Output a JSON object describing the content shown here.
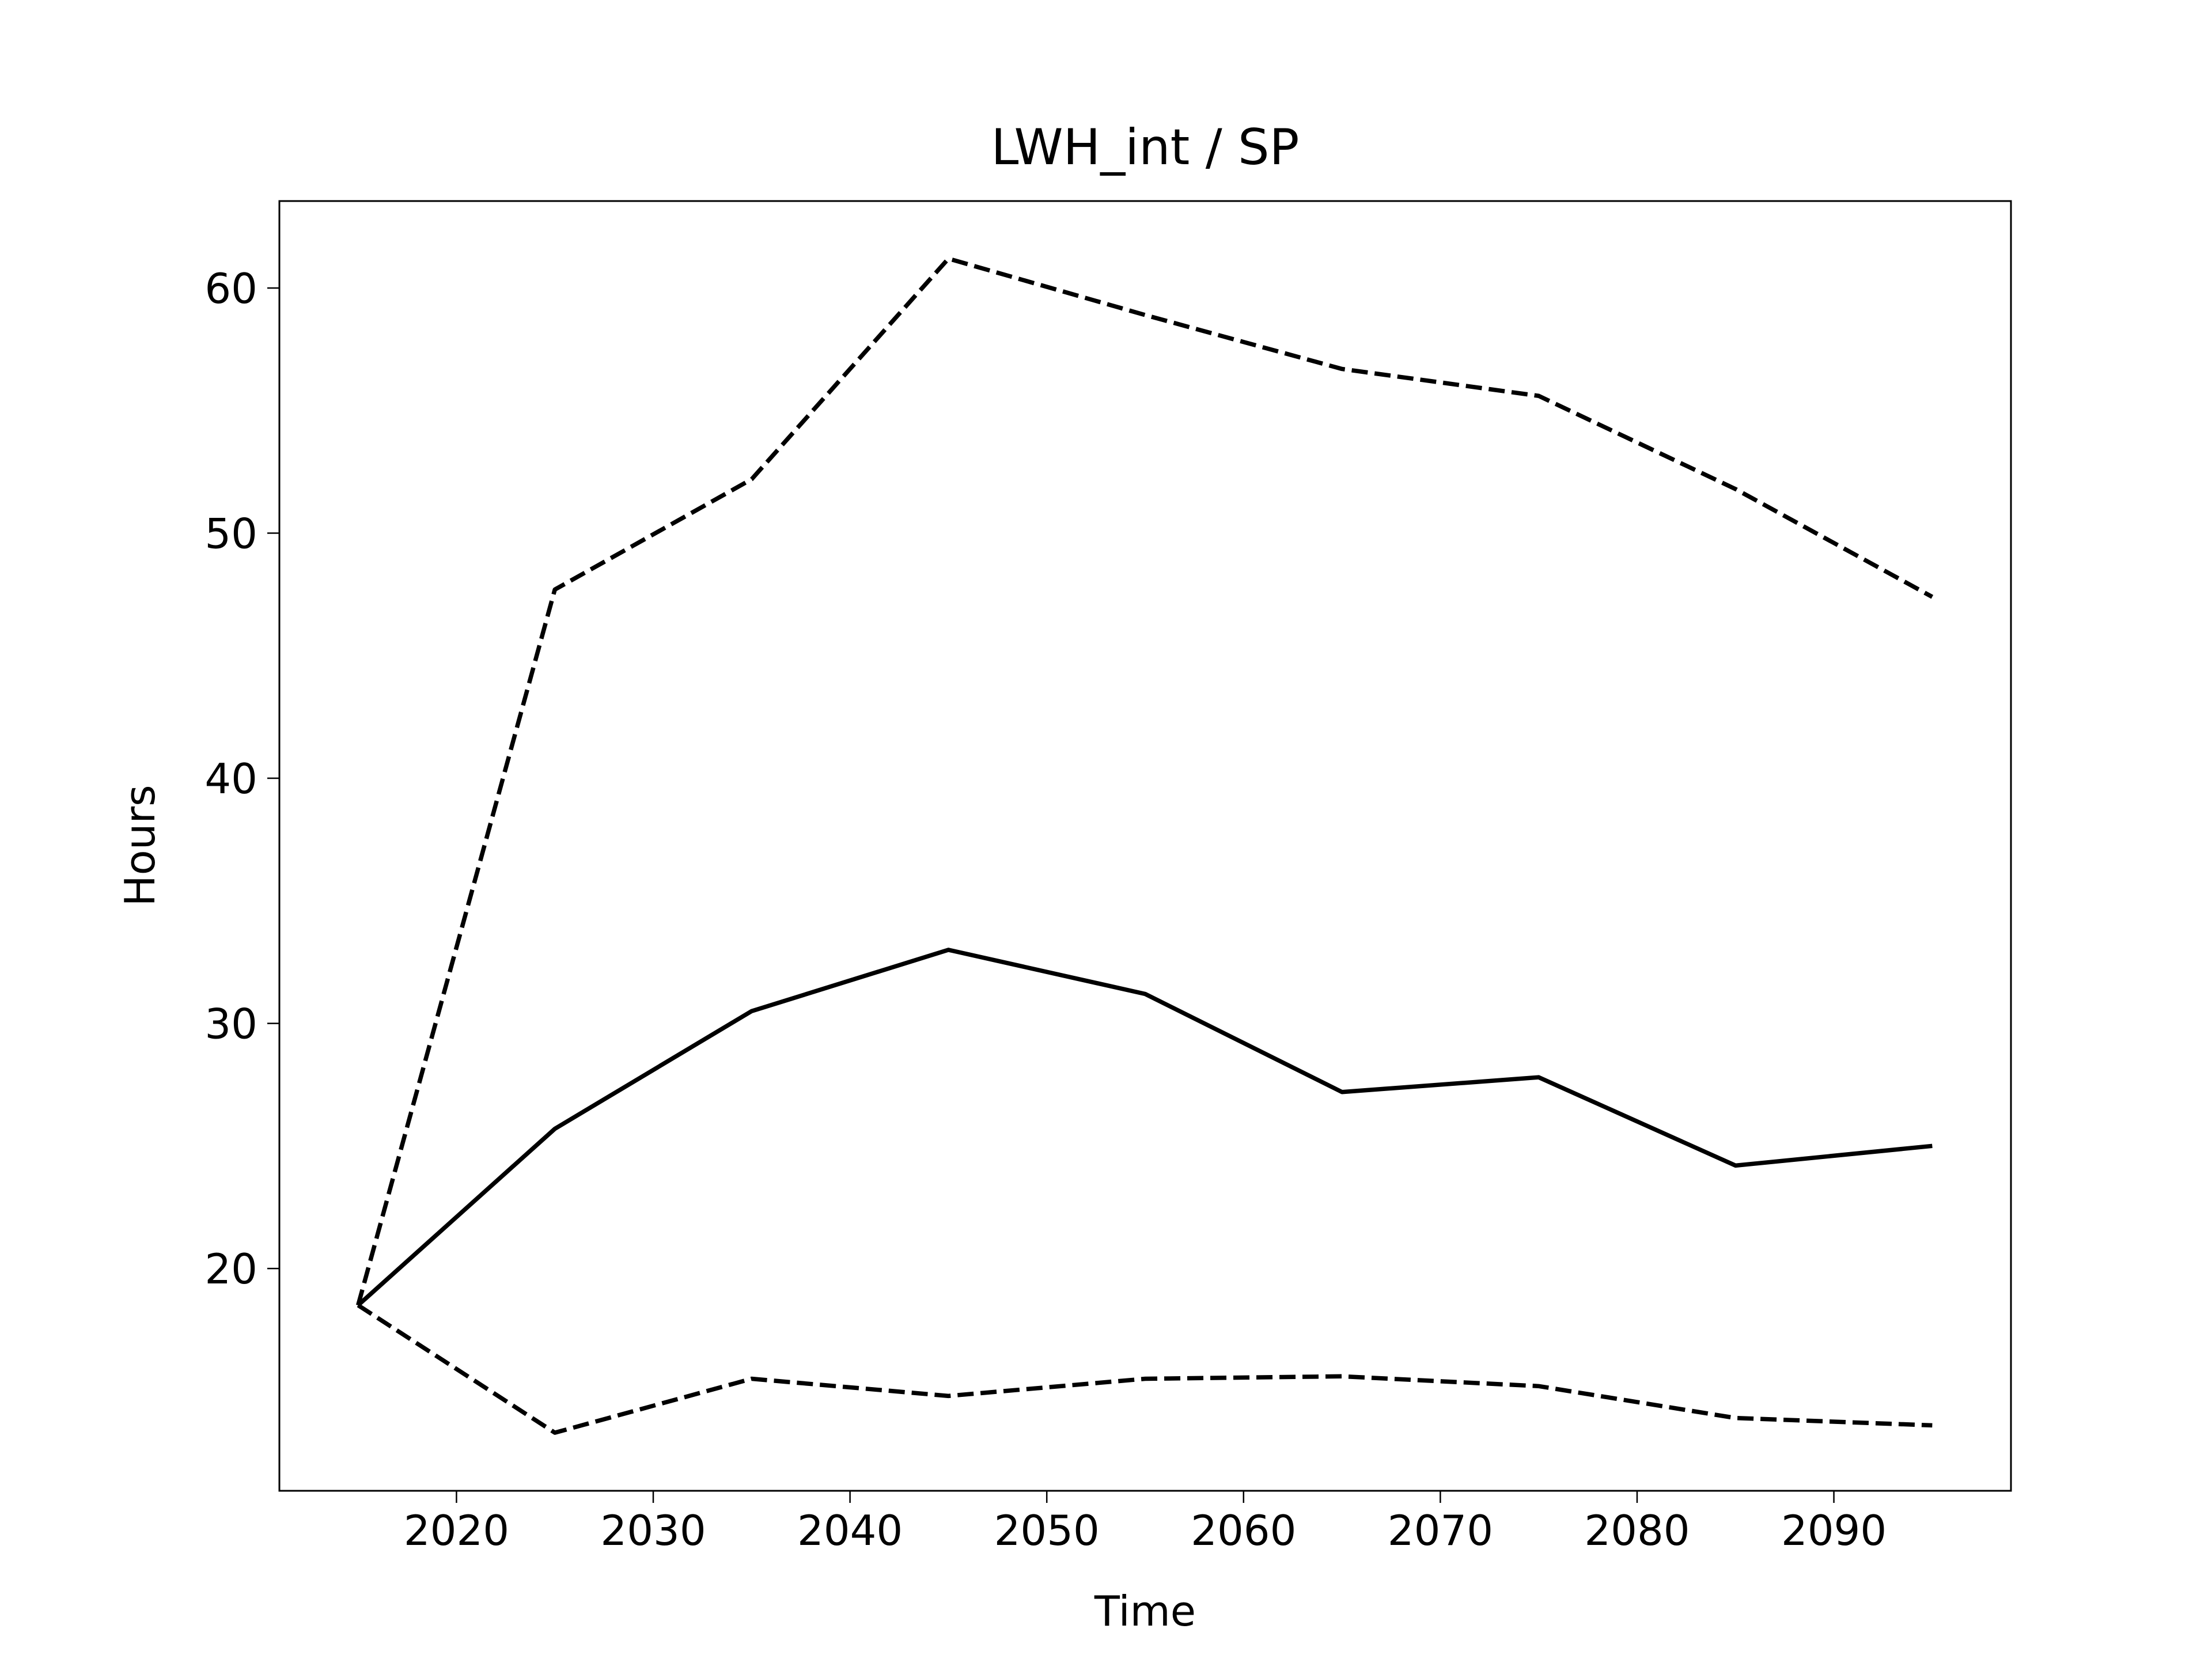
{
  "chart_data": {
    "type": "line",
    "title": "LWH_int / SP",
    "x_label": "Time",
    "y_label": "Hours",
    "x": [
      2015,
      2025,
      2035,
      2045,
      2055,
      2065,
      2075,
      2085,
      2095
    ],
    "series": [
      {
        "color": "#000000",
        "style": "solid",
        "values": [
          18.5,
          25.7,
          30.5,
          33.0,
          31.2,
          27.2,
          27.8,
          24.2,
          25.0
        ]
      },
      {
        "color": "#000000",
        "style": "dashed",
        "values": [
          18.5,
          47.7,
          52.2,
          61.2,
          58.9,
          56.7,
          55.6,
          51.8,
          47.4
        ]
      },
      {
        "color": "#000000",
        "style": "dashed",
        "values": [
          18.5,
          13.3,
          15.5,
          14.8,
          15.5,
          15.6,
          15.2,
          13.9,
          13.6
        ]
      }
    ],
    "xlim": [
      2011,
      2099
    ],
    "xticks": [
      2020,
      2030,
      2040,
      2050,
      2060,
      2070,
      2080,
      2090
    ],
    "ylim": [
      10.93,
      63.55
    ],
    "yticks": [
      20,
      30,
      40,
      50,
      60
    ],
    "grid": false
  }
}
